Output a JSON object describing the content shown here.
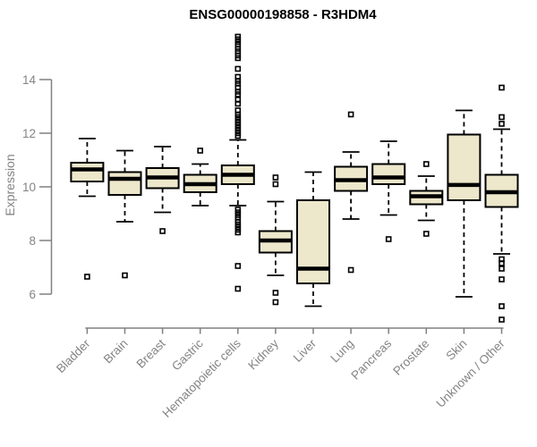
{
  "chart_data": {
    "type": "boxplot",
    "title": "ENSG00000198858 - R3HDM4",
    "ylabel": "Expression",
    "xlabel": "",
    "ylim": [
      4.9,
      15.8
    ],
    "y_ticks": [
      6,
      8,
      10,
      12,
      14
    ],
    "grid": false,
    "legend": "none",
    "categories": [
      "Bladder",
      "Brain",
      "Breast",
      "Gastric",
      "Hematopoietic cells",
      "Kidney",
      "Liver",
      "Lung",
      "Pancreas",
      "Prostate",
      "Skin",
      "Unknown / Other"
    ],
    "boxes": [
      {
        "category": "Bladder",
        "whisker_low": 9.65,
        "q1": 10.2,
        "median": 10.65,
        "q3": 10.9,
        "whisker_high": 11.8,
        "outliers": [
          6.65
        ]
      },
      {
        "category": "Brain",
        "whisker_low": 8.7,
        "q1": 9.7,
        "median": 10.3,
        "q3": 10.55,
        "whisker_high": 11.35,
        "outliers": [
          6.7
        ]
      },
      {
        "category": "Breast",
        "whisker_low": 9.05,
        "q1": 9.95,
        "median": 10.35,
        "q3": 10.7,
        "whisker_high": 11.5,
        "outliers": [
          8.35
        ]
      },
      {
        "category": "Gastric",
        "whisker_low": 9.3,
        "q1": 9.8,
        "median": 10.1,
        "q3": 10.45,
        "whisker_high": 10.85,
        "outliers": [
          11.35
        ]
      },
      {
        "category": "Hematopoietic cells",
        "whisker_low": 9.3,
        "q1": 10.1,
        "median": 10.45,
        "q3": 10.8,
        "whisker_high": 11.75,
        "outliers": [
          15.6,
          15.5,
          15.4,
          15.3,
          15.15,
          15.05,
          14.9,
          14.8,
          14.4,
          14.1,
          13.95,
          13.85,
          13.7,
          13.55,
          13.45,
          13.25,
          13.1,
          12.85,
          12.7,
          12.6,
          12.5,
          12.4,
          12.3,
          12.2,
          12.1,
          12.0,
          11.9,
          9.15,
          9.05,
          8.95,
          8.85,
          8.7,
          8.6,
          8.5,
          8.4,
          8.3,
          7.05,
          6.2
        ]
      },
      {
        "category": "Kidney",
        "whisker_low": 6.7,
        "q1": 7.55,
        "median": 8.0,
        "q3": 8.35,
        "whisker_high": 9.45,
        "outliers": [
          10.35,
          10.1,
          6.05,
          5.7
        ]
      },
      {
        "category": "Liver",
        "whisker_low": 5.55,
        "q1": 6.4,
        "median": 6.95,
        "q3": 9.5,
        "whisker_high": 10.55,
        "outliers": []
      },
      {
        "category": "Lung",
        "whisker_low": 8.8,
        "q1": 9.85,
        "median": 10.25,
        "q3": 10.75,
        "whisker_high": 11.3,
        "outliers": [
          12.7,
          6.9
        ]
      },
      {
        "category": "Pancreas",
        "whisker_low": 8.95,
        "q1": 10.1,
        "median": 10.35,
        "q3": 10.85,
        "whisker_high": 11.7,
        "outliers": [
          8.05
        ]
      },
      {
        "category": "Prostate",
        "whisker_low": 8.75,
        "q1": 9.35,
        "median": 9.65,
        "q3": 9.85,
        "whisker_high": 10.4,
        "outliers": [
          10.85,
          8.25
        ]
      },
      {
        "category": "Skin",
        "whisker_low": 5.9,
        "q1": 9.5,
        "median": 10.07,
        "q3": 11.95,
        "whisker_high": 12.85,
        "outliers": []
      },
      {
        "category": "Unknown / Other",
        "whisker_low": 7.5,
        "q1": 9.25,
        "median": 9.8,
        "q3": 10.45,
        "whisker_high": 12.15,
        "outliers": [
          13.7,
          12.6,
          12.35,
          7.3,
          7.15,
          6.95,
          6.55,
          5.55,
          5.05
        ]
      }
    ],
    "colors": {
      "box_fill": "#EDE7CB",
      "box_stroke": "#000000",
      "median": "#000000",
      "whisker": "#000000",
      "axis": "#808080",
      "tick_text": "#848484",
      "title_text": "#000000",
      "background": "#ffffff"
    }
  }
}
